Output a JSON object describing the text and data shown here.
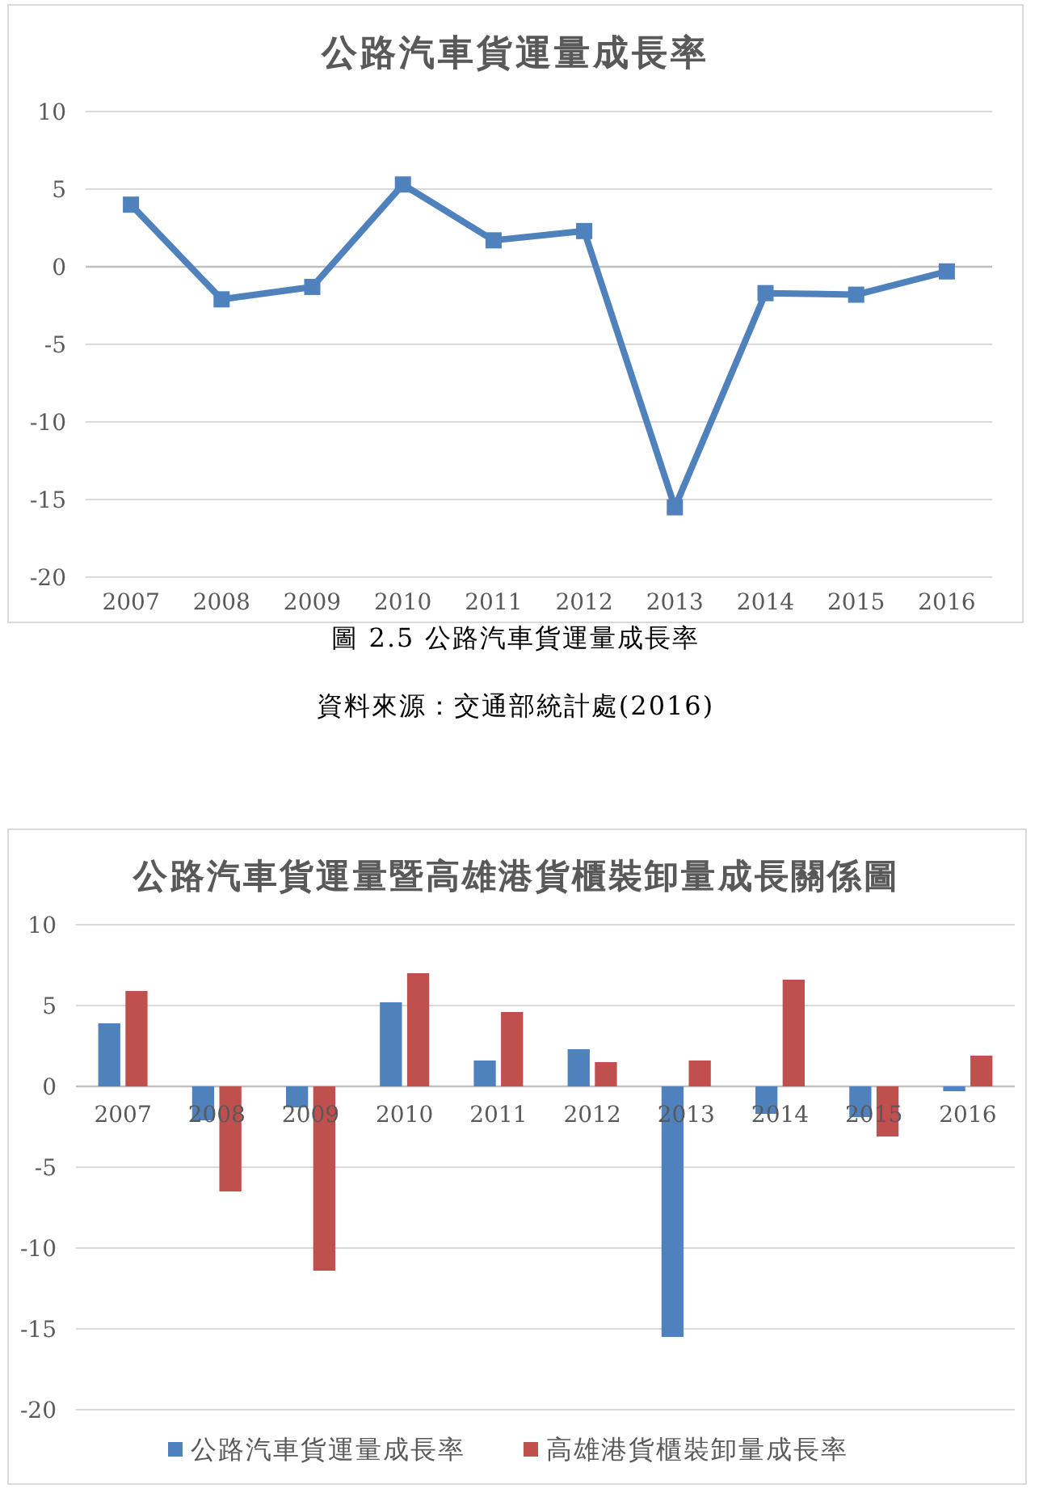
{
  "chart_data": [
    {
      "type": "line",
      "title": "公路汽車貨運量成長率",
      "categories": [
        "2007",
        "2008",
        "2009",
        "2010",
        "2011",
        "2012",
        "2013",
        "2014",
        "2015",
        "2016"
      ],
      "values": [
        4.0,
        -2.1,
        -1.3,
        5.3,
        1.7,
        2.3,
        -15.5,
        -1.7,
        -1.8,
        -0.3
      ],
      "color": "#4f81bd",
      "marker": "square",
      "line_style": "solid",
      "ylim": [
        -20,
        10
      ],
      "yticks": [
        -20,
        -15,
        -10,
        -5,
        0,
        5,
        10
      ],
      "grid": "y",
      "annotations": [
        "圖 2.5  公路汽車貨運量成長率",
        "資料來源：交通部統計處(2016)"
      ]
    },
    {
      "type": "bar",
      "title": "公路汽車貨運量暨高雄港貨櫃裝卸量成長關係圖",
      "categories": [
        "2007",
        "2008",
        "2009",
        "2010",
        "2011",
        "2012",
        "2013",
        "2014",
        "2015",
        "2016"
      ],
      "series": [
        {
          "name": "公路汽車貨運量成長率",
          "color": "#4f81bd",
          "values": [
            3.9,
            -2.1,
            -1.3,
            5.2,
            1.6,
            2.3,
            -15.5,
            -1.7,
            -1.9,
            -0.3
          ]
        },
        {
          "name": "高雄港貨櫃裝卸量成長率",
          "color": "#c0504d",
          "values": [
            5.9,
            -6.5,
            -11.4,
            7.0,
            4.6,
            1.5,
            1.6,
            6.6,
            -3.1,
            1.9
          ]
        }
      ],
      "ylim": [
        -20,
        10
      ],
      "yticks": [
        -20,
        -15,
        -10,
        -5,
        0,
        5,
        10
      ],
      "grid": "y",
      "legend": "bottom"
    }
  ]
}
